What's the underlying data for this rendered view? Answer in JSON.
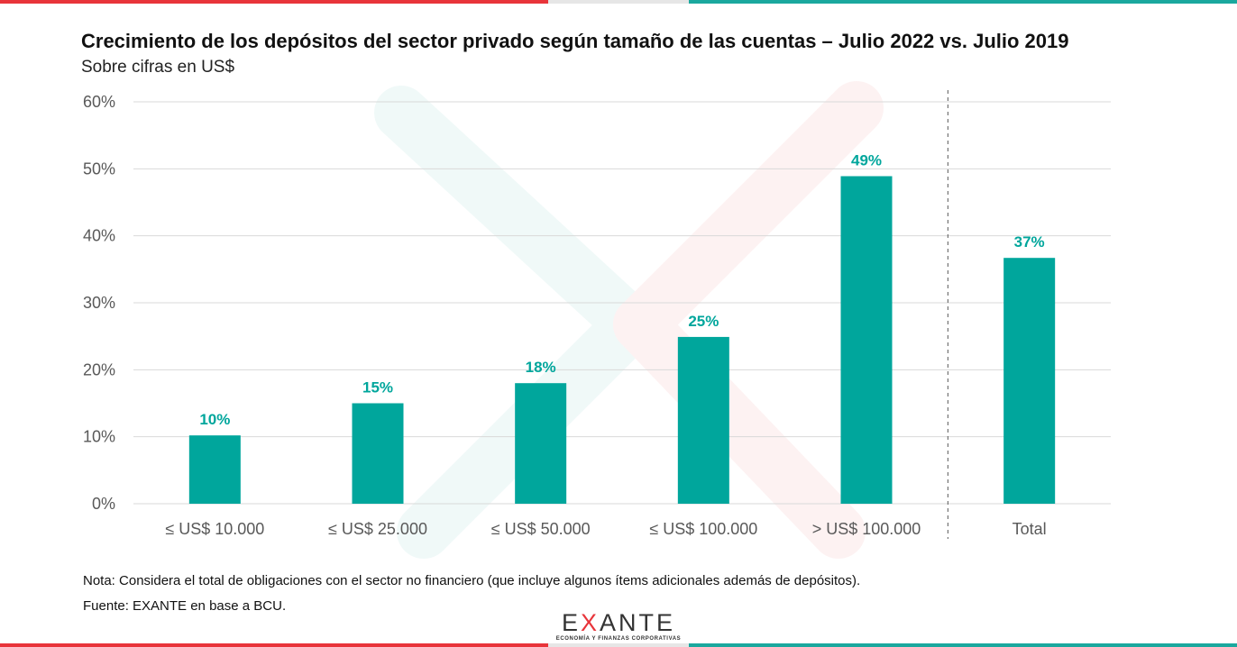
{
  "colors": {
    "bar": "#00A69C",
    "accent_red": "#E8343A",
    "accent_teal": "#1AA89E",
    "grid": "#D9D9D9",
    "tick": "#595959"
  },
  "chart_data": {
    "type": "bar",
    "title": "Crecimiento de los depósitos del sector privado según tamaño de las cuentas – Julio 2022 vs. Julio 2019",
    "subtitle": "Sobre cifras en US$",
    "categories": [
      "≤ US$ 10.000",
      "≤ US$ 25.000",
      "≤ US$ 50.000",
      "≤ US$ 100.000",
      "> US$ 100.000",
      "Total"
    ],
    "values": [
      10.2,
      15.0,
      18.0,
      24.9,
      48.9,
      36.7
    ],
    "data_labels": [
      "10%",
      "15%",
      "18%",
      "25%",
      "49%",
      "37%"
    ],
    "ylim": [
      0,
      60
    ],
    "yticks": [
      "0%",
      "10%",
      "20%",
      "30%",
      "40%",
      "50%",
      "60%"
    ],
    "xlabel": "",
    "ylabel": "",
    "grid": true,
    "separator_before": "Total"
  },
  "footer": {
    "note": "Nota: Considera el total de obligaciones con el sector no financiero (que incluye algunos ítems adicionales además de depósitos).",
    "source": "Fuente: EXANTE en base a BCU."
  },
  "logo": {
    "word_pre": "E",
    "word_x": "X",
    "word_post": "ANTE",
    "tagline": "ECONOMÍA Y FINANZAS CORPORATIVAS"
  }
}
